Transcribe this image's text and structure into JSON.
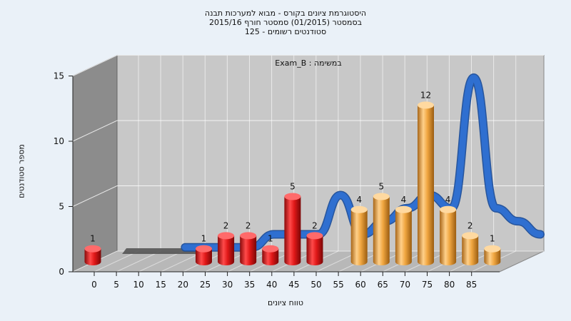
{
  "chart_data": {
    "type": "bar",
    "title_lines": [
      "היסטוגרמת ציונים בקורס - מבוא למערכות תבנה",
      "בסמסטר  (01/2015)  סמסטר חורף 2015/16",
      "סטודנטים רשומים - 125"
    ],
    "subtitle": "Exam_B : במשימה",
    "xlabel": "טווח ציונים",
    "ylabel": "מספר סטודנטים",
    "ylim": [
      0,
      15
    ],
    "yticks": [
      "0",
      "5",
      "10",
      "15"
    ],
    "xticks": [
      "0",
      "5",
      "10",
      "15",
      "20",
      "25",
      "30",
      "35",
      "40",
      "45",
      "50",
      "55",
      "60",
      "65",
      "70",
      "75",
      "80",
      "85"
    ],
    "bars": [
      {
        "x": 0,
        "value": 1,
        "label": "1",
        "color": "red"
      },
      {
        "x": 25,
        "value": 1,
        "label": "1",
        "color": "red"
      },
      {
        "x": 30,
        "value": 2,
        "label": "2",
        "color": "red"
      },
      {
        "x": 35,
        "value": 2,
        "label": "2",
        "color": "red"
      },
      {
        "x": 40,
        "value": 1,
        "label": "1",
        "color": "red"
      },
      {
        "x": 45,
        "value": 5,
        "label": "5",
        "color": "red"
      },
      {
        "x": 50,
        "value": 2,
        "label": "2",
        "color": "red"
      },
      {
        "x": 60,
        "value": 4,
        "label": "4",
        "color": "orange"
      },
      {
        "x": 65,
        "value": 5,
        "label": "5",
        "color": "orange"
      },
      {
        "x": 70,
        "value": 4,
        "label": "4",
        "color": "orange"
      },
      {
        "x": 75,
        "value": 12,
        "label": "12",
        "color": "orange"
      },
      {
        "x": 80,
        "value": 4,
        "label": "4",
        "color": "orange"
      },
      {
        "x": 85,
        "value": 2,
        "label": "2",
        "color": "orange"
      },
      {
        "x": 90,
        "value": 1,
        "label": "1",
        "color": "orange"
      }
    ],
    "curve": [
      [
        15,
        1
      ],
      [
        20,
        1
      ],
      [
        25,
        1
      ],
      [
        30,
        1
      ],
      [
        35,
        2
      ],
      [
        40,
        2
      ],
      [
        45,
        2
      ],
      [
        50,
        5
      ],
      [
        55,
        2
      ],
      [
        60,
        3
      ],
      [
        65,
        4
      ],
      [
        70,
        5
      ],
      [
        75,
        4
      ],
      [
        80,
        14
      ],
      [
        85,
        4
      ],
      [
        90,
        3
      ],
      [
        95,
        2
      ]
    ],
    "grid": true,
    "colors": {
      "fail": "#e8141b",
      "pass": "#f0a640",
      "curve": "#2f6fd0",
      "wall": "#8c8c8c",
      "floor": "#b8b8b8",
      "back": "#c8c8c8"
    }
  }
}
